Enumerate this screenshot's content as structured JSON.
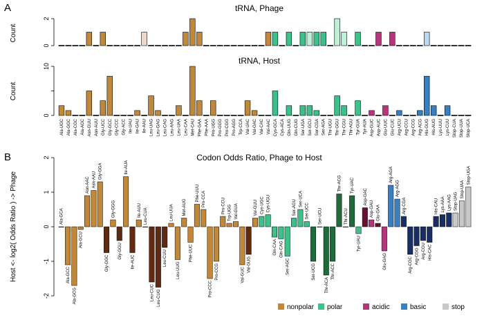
{
  "colors": {
    "nonpolar": "#C1883A",
    "polar": "#3DC08A",
    "acidic": "#B5367B",
    "basic": "#3A7FBF",
    "stop": "#C8C8C8"
  },
  "legend": [
    {
      "key": "nonpolar",
      "label": "nonpolar"
    },
    {
      "key": "polar",
      "label": "polar"
    },
    {
      "key": "acidic",
      "label": "acidic"
    },
    {
      "key": "basic",
      "label": "basic"
    },
    {
      "key": "stop",
      "label": "stop"
    }
  ],
  "panels": {
    "A": {
      "letter": "A"
    },
    "B": {
      "letter": "B"
    }
  },
  "chart_data": [
    {
      "type": "bar",
      "title": "tRNA, Phage",
      "ylabel": "Count",
      "ylim": [
        0,
        2
      ],
      "yticks": [
        0,
        2
      ],
      "categories": [
        "Ala-UGC",
        "Ala-GGC",
        "Ala-CGC",
        "Ala-AGC",
        "Asn-GUU",
        "Asn-AUU",
        "Gly-UCC",
        "Gly-GCC",
        "Gly-CCC",
        "Gly-ACC",
        "Ile-UAU",
        "Ile-GAU",
        "Ile-AAU",
        "Leu-UAG",
        "Leu-GAG",
        "Leu-CAG",
        "Leu-AAG",
        "Leu-UAA",
        "Leu-CAA",
        "Met-CAU",
        "Phe-GAA",
        "Phe-AAA",
        "Pro-UGG",
        "Pro-GGG",
        "Pro-CGG",
        "Pro-AGG",
        "Trp-CCA",
        "Val-UAC",
        "Val-GAC",
        "Val-CAC",
        "Val-AAC",
        "Cys-GCA",
        "Cys-ACA",
        "Gln-UUG",
        "Gln-CUG",
        "Ser-UGA",
        "Ser-GCU",
        "Ser-CGA",
        "Ser-AGA",
        "Thr-UGU",
        "Thr-GGU",
        "Thr-CGU",
        "Thr-AGU",
        "Tyr-GUA",
        "Tyr-AUA",
        "Asp-GUC",
        "Asp-AUC",
        "Glu-UUC",
        "Glu-CUC",
        "Arg-UCU",
        "Arg-CCU",
        "Arg-CCG",
        "Arg-ACG",
        "His-GUG",
        "His-AUG",
        "Lys-UUU",
        "Lys-CUU",
        "Stop-CUA",
        "Stop-UUA",
        "Stop-UCA"
      ],
      "classes": [
        "nonpolar",
        "nonpolar",
        "nonpolar",
        "nonpolar",
        "nonpolar",
        "nonpolar",
        "nonpolar",
        "nonpolar",
        "nonpolar",
        "nonpolar",
        "nonpolar",
        "nonpolar",
        "nonpolar",
        "nonpolar",
        "nonpolar",
        "nonpolar",
        "nonpolar",
        "nonpolar",
        "nonpolar",
        "nonpolar",
        "nonpolar",
        "nonpolar",
        "nonpolar",
        "nonpolar",
        "nonpolar",
        "nonpolar",
        "nonpolar",
        "nonpolar",
        "nonpolar",
        "nonpolar",
        "nonpolar",
        "polar",
        "polar",
        "polar",
        "polar",
        "polar",
        "polar",
        "polar",
        "polar",
        "polar",
        "polar",
        "polar",
        "polar",
        "polar",
        "polar",
        "acidic",
        "acidic",
        "acidic",
        "acidic",
        "basic",
        "basic",
        "basic",
        "basic",
        "basic",
        "basic",
        "basic",
        "basic",
        "stop",
        "stop",
        "stop"
      ],
      "values": [
        0,
        0,
        0,
        0,
        1,
        0,
        1,
        0,
        0,
        0,
        0,
        0,
        1,
        0,
        0,
        0,
        0,
        0,
        1,
        2,
        1,
        0,
        0,
        0,
        0,
        0,
        0,
        0,
        0,
        0,
        1,
        1,
        0,
        1,
        0,
        1,
        1,
        1,
        1,
        0,
        2,
        1,
        0,
        1,
        0,
        0,
        1,
        0,
        1,
        0,
        0,
        0,
        0,
        1,
        0,
        0,
        0,
        0,
        0,
        0
      ],
      "light": [
        false,
        false,
        false,
        false,
        false,
        false,
        false,
        false,
        false,
        false,
        false,
        false,
        true,
        false,
        false,
        false,
        false,
        false,
        false,
        false,
        false,
        false,
        false,
        false,
        false,
        false,
        false,
        false,
        false,
        false,
        false,
        false,
        false,
        false,
        false,
        false,
        true,
        false,
        false,
        false,
        true,
        true,
        false,
        false,
        false,
        false,
        false,
        false,
        false,
        false,
        false,
        false,
        false,
        true,
        false,
        false,
        false,
        false,
        false,
        false
      ]
    },
    {
      "type": "bar",
      "title": "tRNA, Host",
      "ylabel": "Count",
      "ylim": [
        0,
        10
      ],
      "yticks": [
        0,
        5,
        10
      ],
      "ytick_labels": [
        "0",
        "",
        "10"
      ],
      "categories": [
        "Ala-UGC",
        "Ala-GGC",
        "Ala-CGC",
        "Ala-AGC",
        "Asn-GUU",
        "Asn-AUU",
        "Gly-UCC",
        "Gly-GCC",
        "Gly-CCC",
        "Gly-ACC",
        "Ile-UAU",
        "Ile-GAU",
        "Ile-AAU",
        "Leu-UAG",
        "Leu-GAG",
        "Leu-CAG",
        "Leu-AAG",
        "Leu-UAA",
        "Leu-CAA",
        "Met-CAU",
        "Phe-GAA",
        "Phe-AAA",
        "Pro-UGG",
        "Pro-GGG",
        "Pro-CGG",
        "Pro-AGG",
        "Trp-CCA",
        "Val-UAC",
        "Val-GAC",
        "Val-CAC",
        "Val-AAC",
        "Cys-GCA",
        "Cys-ACA",
        "Gln-UUG",
        "Gln-CUG",
        "Ser-UGA",
        "Ser-GCU",
        "Ser-CGA",
        "Ser-AGA",
        "Thr-UGU",
        "Thr-GGU",
        "Thr-CGU",
        "Thr-AGU",
        "Tyr-GUA",
        "Tyr-AUA",
        "Asp-GUC",
        "Asp-AUC",
        "Glu-UUC",
        "Glu-CUC",
        "Arg-UCU",
        "Arg-CCU",
        "Arg-CCG",
        "Arg-ACG",
        "His-GUG",
        "His-AUG",
        "Lys-UUU",
        "Lys-CUU",
        "Stop-CUA",
        "Stop-UUA",
        "Stop-UCA"
      ],
      "values": [
        2,
        1,
        0,
        0,
        5,
        0,
        3,
        8,
        0,
        0,
        0,
        1,
        0,
        4,
        1,
        0,
        0,
        2,
        0,
        10,
        3,
        0,
        3,
        0,
        0,
        0,
        0,
        3,
        1,
        0,
        0,
        5,
        0,
        2,
        0,
        2,
        2,
        1,
        0,
        0,
        4,
        2,
        0,
        3,
        0,
        1,
        0,
        2,
        0,
        1,
        0,
        0,
        1,
        8,
        2,
        0,
        2,
        0,
        0,
        0
      ]
    },
    {
      "type": "bar",
      "title": "Codon Odds Ratio, Phage to Host",
      "ylabel": "Host  <-  log2( Odds Ratio )  ->  Phage",
      "ylim": [
        -2,
        2
      ],
      "yticks": [
        -2,
        -1,
        0,
        1,
        2
      ],
      "categories": [
        "Ala-GCA",
        "Ala-GCC",
        "Ala-GCG",
        "Ala-GCU",
        "Asn-AAC",
        "Asn-AAU",
        "Gly-GGA",
        "Gly-GGC",
        "Gly-GGG",
        "Gly-GGU",
        "Ile-AUA",
        "Ile-AUC",
        "Ile-AUU",
        "Leu-CUA",
        "Leu-CUC",
        "Leu-CUG",
        "Leu-CUU",
        "Leu-UUA",
        "Leu-UUG",
        "Met-AUG",
        "Phe-UUC",
        "Phe-UUU",
        "Pro-CCA",
        "Pro-CCC",
        "Pro-CCG",
        "Pro-CCU",
        "Trp-UGG",
        "Val-GUA",
        "Val-GUC",
        "Val-GUG",
        "Val-GUU",
        "Cys-UGC",
        "Cys-UGU",
        "Gln-CAA",
        "Gln-CAG",
        "Ser-AGC",
        "Ser-AGU",
        "Ser-UCA",
        "Ser-UCC",
        "Ser-UCG",
        "Ser-UCU",
        "Thr-ACA",
        "Thr-ACC",
        "Thr-ACG",
        "Thr-ACU",
        "Tyr-UAC",
        "Tyr-UAU",
        "Asp-GAC",
        "Asp-GAU",
        "Glu-GAA",
        "Glu-GAG",
        "Arg-AGA",
        "Arg-AGG",
        "Arg-CGA",
        "Arg-CGC",
        "Arg-CGG",
        "Arg-CGU",
        "His-CAC",
        "His-CAU",
        "Lys-AAA",
        "Lys-AAG",
        "Stop-UAG",
        "Stop-UAA",
        "Stop-UGA"
      ],
      "classes": [
        "nonpolar",
        "nonpolar",
        "nonpolar",
        "nonpolar",
        "nonpolar",
        "nonpolar",
        "nonpolar",
        "nonpolar",
        "nonpolar",
        "nonpolar",
        "nonpolar",
        "nonpolar",
        "nonpolar",
        "nonpolar",
        "nonpolar",
        "nonpolar",
        "nonpolar",
        "nonpolar",
        "nonpolar",
        "nonpolar",
        "nonpolar",
        "nonpolar",
        "nonpolar",
        "nonpolar",
        "nonpolar",
        "nonpolar",
        "nonpolar",
        "nonpolar",
        "nonpolar",
        "nonpolar",
        "nonpolar",
        "polar",
        "polar",
        "polar",
        "polar",
        "polar",
        "polar",
        "polar",
        "polar",
        "polar",
        "polar",
        "polar",
        "polar",
        "polar",
        "polar",
        "polar",
        "polar",
        "acidic",
        "acidic",
        "acidic",
        "acidic",
        "basic",
        "basic",
        "basic",
        "basic",
        "basic",
        "basic",
        "basic",
        "basic",
        "basic",
        "basic",
        "stop",
        "stop",
        "stop"
      ],
      "values": [
        0.0,
        -1.1,
        -1.7,
        -0.08,
        0.9,
        1.05,
        1.3,
        -0.75,
        0.2,
        -0.4,
        1.45,
        -0.75,
        0.2,
        0.0,
        -1.6,
        -1.75,
        -0.6,
        0.1,
        -0.95,
        0.25,
        -0.45,
        0.65,
        0.5,
        -1.5,
        -1.0,
        0.3,
        0.1,
        0.15,
        -1.1,
        -0.8,
        0.25,
        0.3,
        0.35,
        -0.3,
        -0.35,
        -0.85,
        0.25,
        0.5,
        0.15,
        -1.0,
        0.0,
        -1.4,
        -1.0,
        0.95,
        0.0,
        0.9,
        -0.2,
        0.55,
        0.2,
        0.1,
        -0.7,
        1.2,
        0.8,
        0.3,
        -0.8,
        -0.55,
        -0.4,
        -0.45,
        0.3,
        0.35,
        0.4,
        0.4,
        0.75,
        1.15
      ],
      "shade": [
        0,
        0,
        0,
        0,
        0,
        0,
        0,
        1,
        0,
        1,
        0,
        1,
        0,
        0,
        1,
        1,
        1,
        0,
        0,
        0,
        0,
        0,
        0,
        0,
        0,
        0,
        0,
        0,
        0,
        1,
        0,
        0,
        0,
        0,
        0,
        0,
        0,
        0,
        0,
        1,
        0,
        1,
        1,
        1,
        0,
        1,
        0,
        1,
        0,
        1,
        0,
        0,
        0,
        1,
        1,
        1,
        1,
        1,
        1,
        1,
        1,
        0,
        0,
        0
      ]
    }
  ]
}
